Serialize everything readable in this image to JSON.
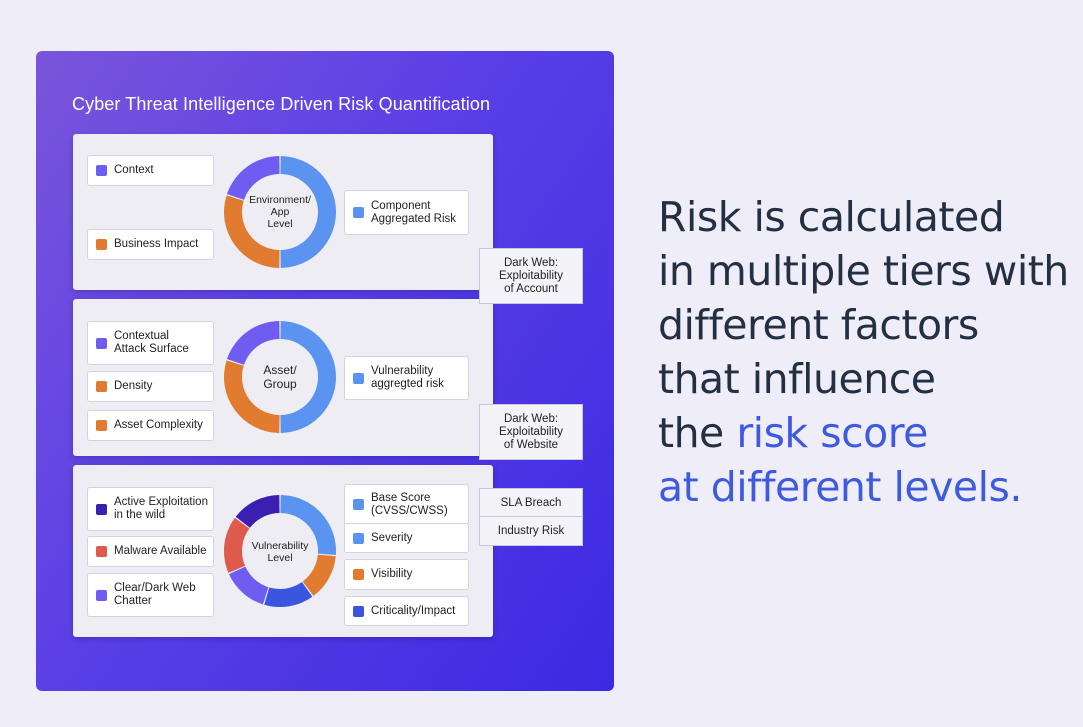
{
  "title": "Cyber Threat Intelligence Driven Risk Quantification",
  "colors": {
    "panel_start": "#7a55db",
    "panel_end": "#3b2ae2",
    "blue": "#5b93f0",
    "orange": "#e07b2f",
    "purple": "#6f5cf0",
    "red": "#de5a4c",
    "royal": "#3a56e0",
    "deep": "#3b1fb0",
    "headline": "#233044",
    "accent": "#3e5be0"
  },
  "tiers": [
    {
      "donut_label": [
        "Environment/",
        "App",
        "Level"
      ],
      "donut_segments": [
        {
          "color": "blue",
          "value": 50
        },
        {
          "color": "orange",
          "value": 30
        },
        {
          "color": "purple",
          "value": 20
        }
      ],
      "left_items": [
        {
          "label": "Context",
          "color": "purple"
        },
        {
          "label": "Business Impact",
          "color": "orange"
        }
      ],
      "right_items": [
        {
          "label": "Component\nAggregated Risk",
          "color": "blue"
        }
      ]
    },
    {
      "donut_label": [
        "Asset/",
        "Group"
      ],
      "donut_segments": [
        {
          "color": "blue",
          "value": 50
        },
        {
          "color": "orange",
          "value": 30
        },
        {
          "color": "purple",
          "value": 20
        }
      ],
      "left_items": [
        {
          "label": "Contextual\nAttack Surface",
          "color": "purple"
        },
        {
          "label": "Density",
          "color": "orange"
        },
        {
          "label": "Asset Complexity",
          "color": "orange"
        }
      ],
      "right_items": [
        {
          "label": "Vulnerability\naggregted risk",
          "color": "blue"
        }
      ]
    },
    {
      "donut_label": [
        "Vulnerability",
        "Level"
      ],
      "donut_segments": [
        {
          "color": "blue",
          "value": 25
        },
        {
          "color": "orange",
          "value": 13
        },
        {
          "color": "royal",
          "value": 14
        },
        {
          "color": "purple",
          "value": 13
        },
        {
          "color": "red",
          "value": 16
        },
        {
          "color": "deep",
          "value": 14
        }
      ],
      "left_items": [
        {
          "label": "Active Exploitation\nin the wild",
          "color": "deep"
        },
        {
          "label": "Malware Available",
          "color": "red"
        },
        {
          "label": "Clear/Dark Web\nChatter",
          "color": "purple"
        }
      ],
      "right_items": [
        {
          "label": "Base Score\n(CVSS/CWSS)",
          "color": "blue"
        },
        {
          "label": "Severity",
          "color": "blue"
        },
        {
          "label": "Visibility",
          "color": "orange"
        },
        {
          "label": "Criticality/Impact",
          "color": "royal"
        }
      ]
    }
  ],
  "side_boxes": {
    "dark_web_account": "Dark Web:\nExploitability\nof Account",
    "dark_web_website": "Dark Web:\nExploitability\nof Website",
    "sla_breach": "SLA Breach",
    "industry_risk": "Industry Risk"
  },
  "headline": {
    "line1": "Risk is calculated",
    "line2": "in multiple tiers with",
    "line3": "different factors",
    "line4": "that influence",
    "line5_plain": "the ",
    "line5_accent": "risk score",
    "line6_accent": "at different levels."
  }
}
